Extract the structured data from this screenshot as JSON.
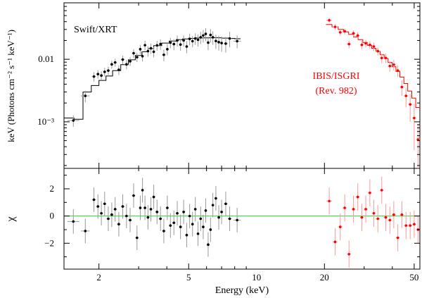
{
  "chart_data": {
    "type": "scatter",
    "xscale": "log",
    "xlim": [
      1.4,
      53
    ],
    "xlabel": "Energy (keV)",
    "xticks": [
      {
        "value": 2,
        "label": "2"
      },
      {
        "value": 5,
        "label": "5"
      },
      {
        "value": 10,
        "label": "10"
      },
      {
        "value": 20,
        "label": "20"
      },
      {
        "value": 50,
        "label": "50"
      }
    ],
    "colors": {
      "xrt": "#000000",
      "isgri": "#ff0000",
      "zero_line": "#33cc33",
      "err_xrt": "#999999",
      "err_isgri": "#ff9999"
    },
    "top_panel": {
      "yscale": "log",
      "ylim": [
        0.00018,
        0.08
      ],
      "ylabel": "keV (Photons cm⁻² s⁻¹ keV⁻¹)",
      "yticks": [
        {
          "value": 0.001,
          "label": "10⁻³"
        },
        {
          "value": 0.01,
          "label": "0.01"
        }
      ],
      "annotations": {
        "xrt": "Swift/XRT",
        "isgri_line1": "IBIS/ISGRI",
        "isgri_line2": "(Rev. 982)"
      },
      "series": [
        {
          "name": "Swift/XRT",
          "color": "#000000",
          "x": [
            1.54,
            1.74,
            1.9,
            1.98,
            2.05,
            2.12,
            2.2,
            2.28,
            2.36,
            2.45,
            2.55,
            2.65,
            2.75,
            2.85,
            2.95,
            3.05,
            3.12,
            3.2,
            3.3,
            3.4,
            3.5,
            3.62,
            3.75,
            3.88,
            4.02,
            4.15,
            4.3,
            4.45,
            4.6,
            4.75,
            4.9,
            5.05,
            5.2,
            5.35,
            5.5,
            5.65,
            5.8,
            5.95,
            6.1,
            6.25,
            6.4,
            6.6,
            6.8,
            7.0,
            7.3,
            7.6,
            8.2
          ],
          "y": [
            0.00105,
            0.0026,
            0.0053,
            0.0058,
            0.0055,
            0.0063,
            0.0066,
            0.0083,
            0.0089,
            0.0068,
            0.0099,
            0.0083,
            0.0093,
            0.0125,
            0.0108,
            0.0145,
            0.0112,
            0.0168,
            0.0135,
            0.015,
            0.0132,
            0.0167,
            0.0175,
            0.0118,
            0.0145,
            0.0185,
            0.0175,
            0.02,
            0.0172,
            0.02,
            0.016,
            0.0212,
            0.0195,
            0.0215,
            0.0205,
            0.0225,
            0.024,
            0.0255,
            0.0185,
            0.0245,
            0.0225,
            0.0196,
            0.0188,
            0.0182,
            0.0178,
            0.0215,
            0.0195
          ],
          "yerr": [
            0.00022,
            0.00055,
            0.0009,
            0.0009,
            0.0009,
            0.001,
            0.001,
            0.0012,
            0.0013,
            0.0012,
            0.0015,
            0.0014,
            0.0015,
            0.002,
            0.0018,
            0.0025,
            0.002,
            0.003,
            0.0025,
            0.0028,
            0.0025,
            0.003,
            0.0033,
            0.0025,
            0.003,
            0.0035,
            0.0035,
            0.004,
            0.0035,
            0.004,
            0.0035,
            0.0045,
            0.004,
            0.0045,
            0.0045,
            0.005,
            0.0055,
            0.006,
            0.0045,
            0.006,
            0.0055,
            0.005,
            0.005,
            0.005,
            0.005,
            0.006,
            0.0045
          ]
        },
        {
          "name": "IBIS/ISGRI (Rev. 982)",
          "color": "#ff0000",
          "x": [
            21,
            22.3,
            23.5,
            24.6,
            25.7,
            26.9,
            28.1,
            29.3,
            30.5,
            31.8,
            33.1,
            34.5,
            35.9,
            37.4,
            39,
            40.6,
            42.3,
            44.1,
            46,
            48,
            50,
            52
          ],
          "y": [
            0.042,
            0.033,
            0.027,
            0.028,
            0.0175,
            0.026,
            0.024,
            0.017,
            0.018,
            0.017,
            0.016,
            0.0135,
            0.0105,
            0.0105,
            0.0078,
            0.0082,
            0.0066,
            0.0036,
            0.0026,
            0.0019,
            0.00115,
            0.00052
          ],
          "yerr": [
            0.004,
            0.0035,
            0.003,
            0.003,
            0.0025,
            0.003,
            0.003,
            0.0025,
            0.0025,
            0.0025,
            0.0025,
            0.002,
            0.0018,
            0.0018,
            0.0015,
            0.0016,
            0.0014,
            0.001,
            0.0009,
            0.0009,
            0.0008,
            0.0004
          ]
        }
      ],
      "models": [
        {
          "name": "Swift/XRT model",
          "color": "#000000",
          "edges": [
            1.4,
            1.55,
            1.7,
            1.85,
            2.0,
            2.15,
            2.3,
            2.5,
            2.7,
            2.9,
            3.1,
            3.3,
            3.5,
            3.8,
            4.1,
            4.4,
            4.7,
            5.0,
            5.4,
            5.8,
            6.2,
            6.6,
            7.0,
            7.5,
            8.0,
            8.5
          ],
          "values": [
            0.00115,
            0.0011,
            0.003,
            0.0038,
            0.0046,
            0.0054,
            0.0066,
            0.0082,
            0.0098,
            0.0115,
            0.0132,
            0.0148,
            0.0165,
            0.0182,
            0.0196,
            0.0206,
            0.0212,
            0.0216,
            0.0219,
            0.022,
            0.0221,
            0.0221,
            0.0218,
            0.0215,
            0.0213
          ]
        },
        {
          "name": "IBIS/ISGRI model",
          "color": "#ff0000",
          "edges": [
            20.3,
            21.6,
            23,
            24.3,
            25.6,
            26.9,
            28.2,
            29.6,
            31,
            32.4,
            33.8,
            35.3,
            36.8,
            38.3,
            39.9,
            41.5,
            43.2,
            45,
            46.8,
            48.8,
            50.8,
            53
          ],
          "values": [
            0.036,
            0.033,
            0.03,
            0.0275,
            0.025,
            0.0228,
            0.0206,
            0.0186,
            0.0167,
            0.015,
            0.0134,
            0.0118,
            0.0103,
            0.0089,
            0.0076,
            0.0064,
            0.0052,
            0.0041,
            0.0031,
            0.0024,
            0.0017
          ]
        }
      ]
    },
    "bottom_panel": {
      "ylim": [
        -3.9,
        3.5
      ],
      "ylabel": "χ",
      "yticks": [
        {
          "value": 2,
          "label": "2"
        },
        {
          "value": 0,
          "label": "0"
        },
        {
          "value": -2,
          "label": "−2"
        }
      ],
      "reference_line": 0,
      "series": [
        {
          "name": "Swift/XRT residuals",
          "color": "#000000",
          "x": [
            1.54,
            1.74,
            1.9,
            1.98,
            2.05,
            2.12,
            2.2,
            2.28,
            2.36,
            2.45,
            2.55,
            2.65,
            2.75,
            2.85,
            2.95,
            3.05,
            3.12,
            3.2,
            3.3,
            3.4,
            3.5,
            3.62,
            3.75,
            3.88,
            4.02,
            4.15,
            4.3,
            4.45,
            4.6,
            4.75,
            4.9,
            5.05,
            5.2,
            5.35,
            5.5,
            5.65,
            5.8,
            5.95,
            6.1,
            6.25,
            6.4,
            6.6,
            6.8,
            7.0,
            7.3,
            7.6,
            8.2
          ],
          "y": [
            -0.4,
            -1.1,
            1.2,
            0.7,
            0.2,
            0.9,
            -0.2,
            0.1,
            0.5,
            -0.6,
            0.7,
            0.0,
            -0.3,
            1.5,
            -1.6,
            0.6,
            1.9,
            0.6,
            -0.1,
            0.5,
            1.4,
            0.3,
            -0.2,
            -1.1,
            0.6,
            -0.7,
            -0.5,
            0.2,
            -0.8,
            0.3,
            -1.4,
            0.0,
            -0.6,
            0.5,
            -1.3,
            -0.2,
            -0.8,
            0.4,
            -2.1,
            -1.0,
            0.8,
            1.3,
            -0.1,
            0.3,
            0.9,
            -0.2,
            -0.3
          ],
          "yerr": [
            0.9,
            0.9,
            0.9,
            0.9,
            0.9,
            0.9,
            0.9,
            0.9,
            0.9,
            0.9,
            0.9,
            0.9,
            0.9,
            0.9,
            0.9,
            0.9,
            0.9,
            0.9,
            0.9,
            0.9,
            0.9,
            0.9,
            0.9,
            0.9,
            0.9,
            0.9,
            0.9,
            0.9,
            0.9,
            0.9,
            0.9,
            0.9,
            0.9,
            0.9,
            0.9,
            0.9,
            0.9,
            0.9,
            0.9,
            0.9,
            0.9,
            0.9,
            0.9,
            0.9,
            0.9,
            0.9,
            0.9
          ]
        },
        {
          "name": "IBIS/ISGRI residuals",
          "color": "#ff0000",
          "x": [
            21,
            22.3,
            23.5,
            24.6,
            25.7,
            26.9,
            28.1,
            29.3,
            30.5,
            31.8,
            33.1,
            34.5,
            35.9,
            37.4,
            39,
            40.6,
            42.3,
            44.1,
            46,
            48,
            50,
            52
          ],
          "y": [
            1.1,
            -1.9,
            -0.8,
            0.6,
            -2.8,
            0.5,
            1.4,
            -0.1,
            0.5,
            1.7,
            0.2,
            -0.2,
            1.9,
            -0.1,
            -0.3,
            0.1,
            -1.6,
            0.1,
            -0.7,
            -0.7,
            -0.6,
            -1.0
          ],
          "yerr": [
            1.0,
            1.0,
            1.0,
            1.0,
            1.0,
            1.0,
            1.0,
            1.0,
            1.0,
            1.0,
            1.0,
            1.0,
            1.0,
            1.0,
            1.0,
            1.0,
            1.0,
            1.0,
            1.0,
            1.0,
            1.0,
            1.0
          ]
        }
      ]
    }
  }
}
